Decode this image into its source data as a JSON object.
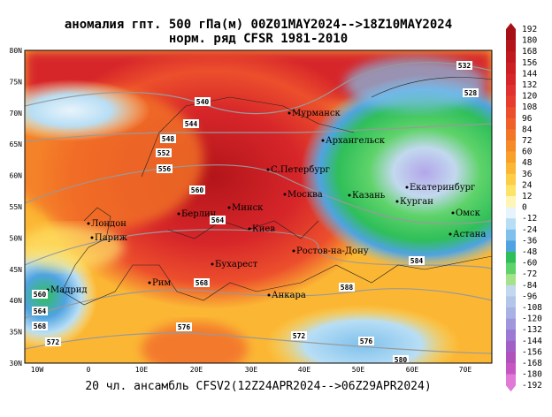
{
  "title": "аномалия гпт. 500 гПа(м) 00Z01MAY2024-->18Z10MAY2024",
  "subtitle": "норм. ряд CFSR 1981-2010",
  "footer": "20 чл. ансамбль CFSV2(12Z24APR2024-->06Z29APR2024)",
  "lat_labels": [
    "80N",
    "75N",
    "70N",
    "65N",
    "60N",
    "55N",
    "50N",
    "45N",
    "40N",
    "35N",
    "30N"
  ],
  "lon_labels": [
    "10W",
    "0",
    "10E",
    "20E",
    "30E",
    "40E",
    "50E",
    "60E",
    "70E"
  ],
  "cities": [
    "Мурманск",
    "Архангельск",
    "С.Петербург",
    "Москва",
    "Казань",
    "Екатеринбург",
    "Курган",
    "Омск",
    "Астана",
    "Минск",
    "Киев",
    "Берлин",
    "Лондон",
    "Париж",
    "Бухарест",
    "Ростов-на-Дону",
    "Рим",
    "Мадрид",
    "Анкара"
  ],
  "contour_labels": [
    "540",
    "544",
    "548",
    "552",
    "556",
    "560",
    "564",
    "568",
    "572",
    "576",
    "580",
    "528",
    "532",
    "584",
    "588",
    "560",
    "564",
    "568",
    "572",
    "576"
  ],
  "colorbar": {
    "labels": [
      "192",
      "180",
      "168",
      "156",
      "144",
      "132",
      "120",
      "108",
      "96",
      "84",
      "72",
      "60",
      "48",
      "36",
      "24",
      "12",
      "0",
      "-12",
      "-24",
      "-36",
      "-48",
      "-60",
      "-72",
      "-84",
      "-96",
      "-108",
      "-120",
      "-132",
      "-144",
      "-156",
      "-168",
      "-180",
      "-192"
    ],
    "colors": [
      "#a50f15",
      "#b3151a",
      "#c0191f",
      "#cc1f24",
      "#d7262a",
      "#e03030",
      "#e63d2e",
      "#ec4f2c",
      "#f0612a",
      "#f37528",
      "#f68a26",
      "#f9a02a",
      "#fbb734",
      "#fdcd45",
      "#fee36a",
      "#fff6b5",
      "#e8f4fb",
      "#b8def5",
      "#7fc1ec",
      "#4fa3e0",
      "#2fbf5a",
      "#5fd36a",
      "#a4e38a",
      "#c2d8ee",
      "#b3c6ea",
      "#a9b2e4",
      "#a096dc",
      "#9a7ad2",
      "#a060c6",
      "#b052bc",
      "#c656c2",
      "#e07ad6"
    ]
  }
}
